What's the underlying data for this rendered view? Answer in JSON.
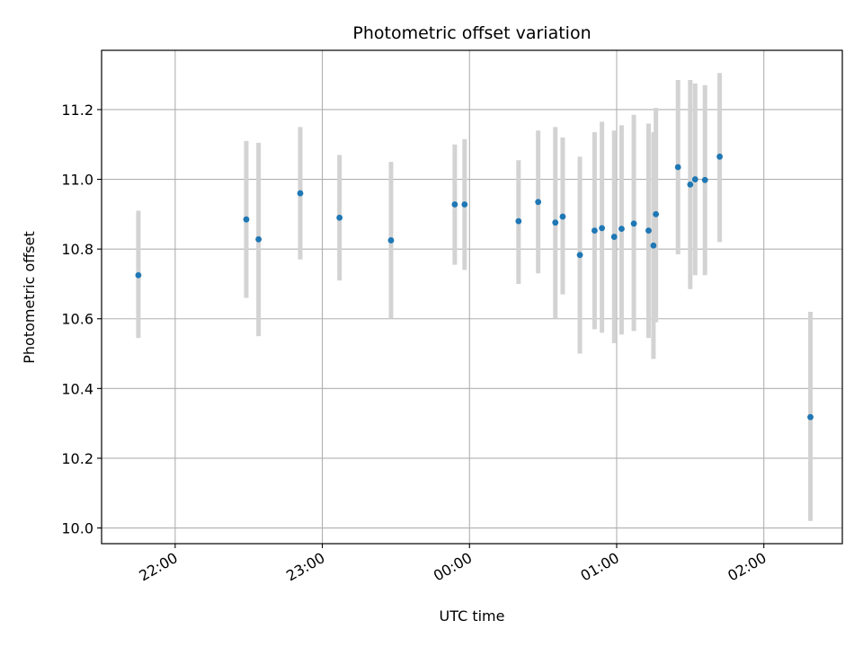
{
  "chart_data": {
    "type": "scatter",
    "title": "Photometric offset variation",
    "xlabel": "UTC time",
    "ylabel": "Photometric offset",
    "x_axis_type": "time",
    "xlim": [
      "21:30",
      "02:32"
    ],
    "ylim": [
      9.955,
      11.37
    ],
    "x_ticks": [
      "22:00",
      "23:00",
      "00:00",
      "01:00",
      "02:00"
    ],
    "y_ticks": [
      "10.0",
      "10.2",
      "10.4",
      "10.6",
      "10.8",
      "11.0",
      "11.2"
    ],
    "grid": true,
    "errorbar_color": "#d3d3d3",
    "marker_color": "#1f77b4",
    "points": [
      {
        "x": "21:45",
        "y": 10.725,
        "yerr_low": 10.545,
        "yerr_high": 10.91
      },
      {
        "x": "22:29",
        "y": 10.885,
        "yerr_low": 10.66,
        "yerr_high": 11.11
      },
      {
        "x": "22:34",
        "y": 10.828,
        "yerr_low": 10.55,
        "yerr_high": 11.105
      },
      {
        "x": "22:51",
        "y": 10.96,
        "yerr_low": 10.77,
        "yerr_high": 11.15
      },
      {
        "x": "23:07",
        "y": 10.89,
        "yerr_low": 10.71,
        "yerr_high": 11.07
      },
      {
        "x": "23:28",
        "y": 10.825,
        "yerr_low": 10.6,
        "yerr_high": 11.05
      },
      {
        "x": "23:54",
        "y": 10.928,
        "yerr_low": 10.755,
        "yerr_high": 11.1
      },
      {
        "x": "23:58",
        "y": 10.928,
        "yerr_low": 10.74,
        "yerr_high": 11.115
      },
      {
        "x": "00:20",
        "y": 10.88,
        "yerr_low": 10.7,
        "yerr_high": 11.055
      },
      {
        "x": "00:28",
        "y": 10.935,
        "yerr_low": 10.73,
        "yerr_high": 11.14
      },
      {
        "x": "00:35",
        "y": 10.876,
        "yerr_low": 10.6,
        "yerr_high": 11.15
      },
      {
        "x": "00:38",
        "y": 10.893,
        "yerr_low": 10.67,
        "yerr_high": 11.12
      },
      {
        "x": "00:45",
        "y": 10.783,
        "yerr_low": 10.5,
        "yerr_high": 11.065
      },
      {
        "x": "00:51",
        "y": 10.853,
        "yerr_low": 10.57,
        "yerr_high": 11.135
      },
      {
        "x": "00:54",
        "y": 10.86,
        "yerr_low": 10.56,
        "yerr_high": 11.165
      },
      {
        "x": "00:59",
        "y": 10.835,
        "yerr_low": 10.53,
        "yerr_high": 11.14
      },
      {
        "x": "01:02",
        "y": 10.858,
        "yerr_low": 10.555,
        "yerr_high": 11.155
      },
      {
        "x": "01:07",
        "y": 10.873,
        "yerr_low": 10.565,
        "yerr_high": 11.185
      },
      {
        "x": "01:13",
        "y": 10.853,
        "yerr_low": 10.545,
        "yerr_high": 11.16
      },
      {
        "x": "01:15",
        "y": 10.81,
        "yerr_low": 10.485,
        "yerr_high": 11.135
      },
      {
        "x": "01:16",
        "y": 10.9,
        "yerr_low": 10.59,
        "yerr_high": 11.205
      },
      {
        "x": "01:25",
        "y": 11.035,
        "yerr_low": 10.785,
        "yerr_high": 11.285
      },
      {
        "x": "01:30",
        "y": 10.985,
        "yerr_low": 10.685,
        "yerr_high": 11.285
      },
      {
        "x": "01:32",
        "y": 11.0,
        "yerr_low": 10.725,
        "yerr_high": 11.275
      },
      {
        "x": "01:36",
        "y": 10.998,
        "yerr_low": 10.725,
        "yerr_high": 11.27
      },
      {
        "x": "01:42",
        "y": 11.065,
        "yerr_low": 10.82,
        "yerr_high": 11.305
      },
      {
        "x": "02:19",
        "y": 10.318,
        "yerr_low": 10.02,
        "yerr_high": 10.62
      }
    ]
  }
}
